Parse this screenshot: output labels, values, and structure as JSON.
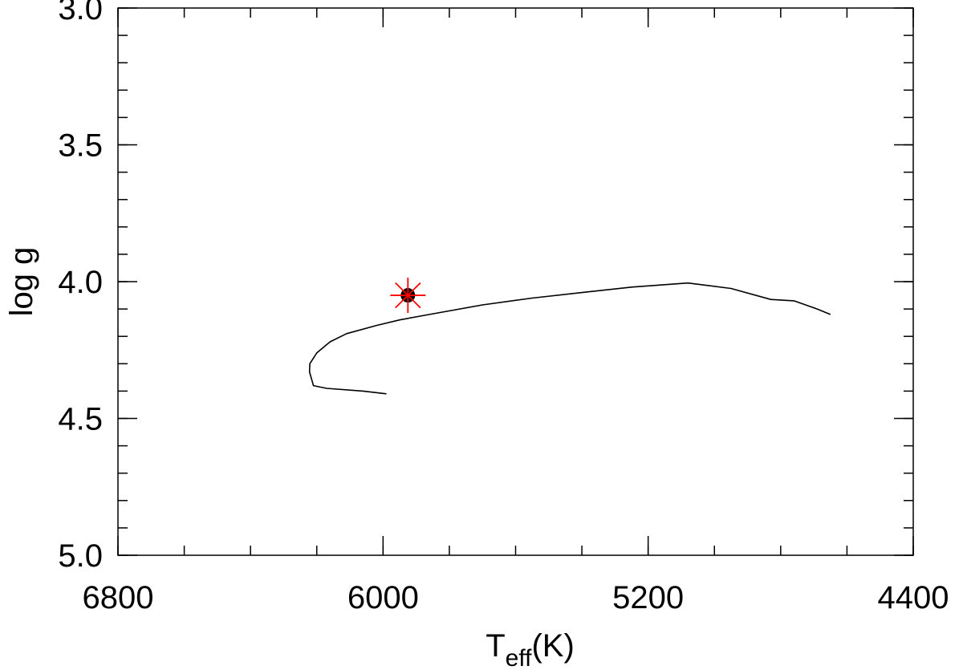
{
  "chart_data": {
    "type": "line",
    "title": "",
    "xlabel": "T",
    "xlabel_subscript": "eff",
    "xlabel_suffix": "(K)",
    "ylabel": "log g",
    "xlim": [
      6800,
      4400
    ],
    "ylim": [
      3.0,
      5.0
    ],
    "x_reversed": true,
    "y_reversed": true,
    "x_ticks": [
      6800,
      6000,
      5200,
      4400
    ],
    "x_tick_labels": [
      "6800",
      "6000",
      "5200",
      "4400"
    ],
    "x_minor_step": 200,
    "y_ticks": [
      3.0,
      3.5,
      4.0,
      4.5,
      5.0
    ],
    "y_tick_labels": [
      "3.0",
      "3.5",
      "4.0",
      "4.5",
      "5.0"
    ],
    "y_minor_step": 0.1,
    "grid": false,
    "series": [
      {
        "color": "#000000",
        "x": [
          5990,
          6060,
          6170,
          6210,
          6222,
          6221,
          6200,
          6160,
          6110,
          6020,
          5950,
          5860,
          5700,
          5550,
          5400,
          5250,
          5080,
          4950,
          4830,
          4760,
          4690,
          4650
        ],
        "y": [
          4.41,
          4.4,
          4.39,
          4.38,
          4.33,
          4.3,
          4.26,
          4.22,
          4.19,
          4.16,
          4.14,
          4.12,
          4.085,
          4.06,
          4.04,
          4.02,
          4.005,
          4.025,
          4.065,
          4.07,
          4.1,
          4.12
        ]
      }
    ],
    "markers": [
      {
        "label_visible": false,
        "x": 5925,
        "y": 4.05,
        "face_color": "#000000",
        "edge_color": "#ff0000"
      }
    ]
  }
}
